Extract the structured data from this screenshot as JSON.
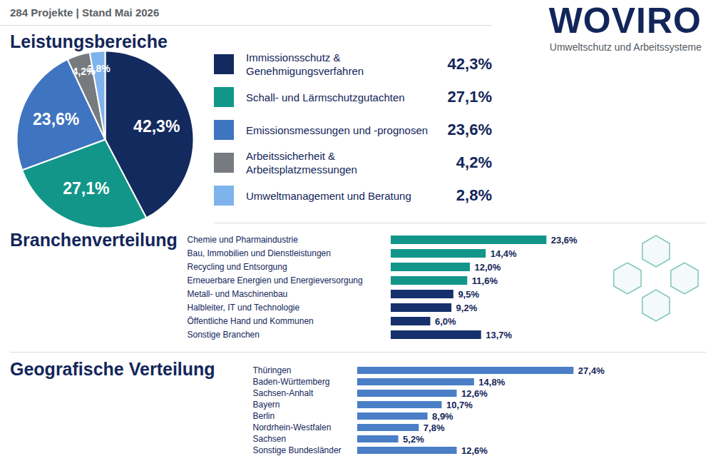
{
  "header": {
    "subtitle": "284 Projekte | Stand Mai 2026",
    "brand": "WOVIRO",
    "tagline": "Umweltschutz und Arbeitssysteme"
  },
  "chart_data": [
    {
      "type": "pie",
      "title": "Leistungsbereiche",
      "categories": [
        "Immissionsschutz & Genehmigungsverfahren",
        "Schall- und Lärmschutzgutachten",
        "Emissionsmessungen und -prognosen",
        "Arbeitssicherheit & Arbeitsplatzmessungen",
        "Umweltmanagement und Beratung"
      ],
      "values": [
        42.3,
        27.1,
        23.6,
        4.2,
        2.8
      ],
      "value_labels": [
        "42,3%",
        "27,1%",
        "23,6%",
        "4,2%",
        "2,8%"
      ],
      "colors": [
        "#132a5e",
        "#12968a",
        "#3f74c0",
        "#777b80",
        "#7fb3ec"
      ],
      "data_labels": true,
      "legend": "right"
    },
    {
      "type": "bar",
      "title": "Branchenverteilung",
      "orientation": "horizontal",
      "categories": [
        "Chemie und Pharmaindustrie",
        "Bau, Immobilien und Dienstleistungen",
        "Recycling und Entsorgung",
        "Erneuerbare Energien und Energieversorgung",
        "Metall- und Maschinenbau",
        "Halbleiter, IT und Technologie",
        "Öffentliche Hand und Kommunen",
        "Sonstige Branchen"
      ],
      "values": [
        23.6,
        14.4,
        12.0,
        11.6,
        9.5,
        9.2,
        6.0,
        13.7
      ],
      "value_labels": [
        "23,6%",
        "14,4%",
        "12,0%",
        "11,6%",
        "9,5%",
        "9,2%",
        "6,0%",
        "13,7%"
      ],
      "colors": [
        "#12968a",
        "#12968a",
        "#12968a",
        "#12968a",
        "#15306b",
        "#15306b",
        "#15306b",
        "#15306b"
      ],
      "xlim": [
        0,
        24
      ],
      "tick_labels": "y",
      "data_labels": true
    },
    {
      "type": "bar",
      "title": "Geografische Verteilung",
      "orientation": "horizontal",
      "categories": [
        "Thüringen",
        "Baden-Württemberg",
        "Sachsen-Anhalt",
        "Bayern",
        "Berlin",
        "Nordrhein-Westfalen",
        "Sachsen",
        "Sonstige Bundesländer"
      ],
      "values": [
        27.4,
        14.8,
        12.6,
        10.7,
        8.9,
        7.8,
        5.2,
        12.6
      ],
      "value_labels": [
        "27,4%",
        "14,8%",
        "12,6%",
        "10,7%",
        "8,9%",
        "7,8%",
        "5,2%",
        "12,6%"
      ],
      "color": "#4a7ec6",
      "xlim": [
        0,
        28
      ],
      "tick_labels": "y",
      "data_labels": true
    }
  ]
}
